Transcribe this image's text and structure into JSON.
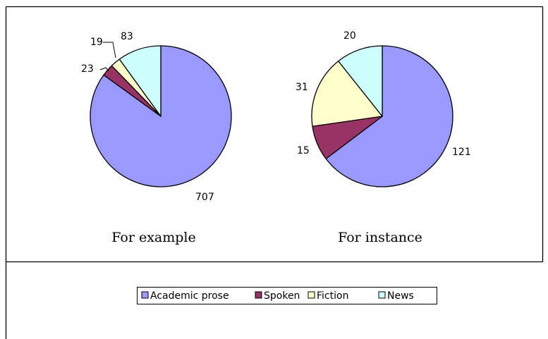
{
  "chart_data": [
    {
      "type": "pie",
      "title": "For example",
      "categories": [
        "Academic prose",
        "Spoken",
        "Fiction",
        "News"
      ],
      "values": [
        707,
        23,
        19,
        83
      ],
      "labels": [
        "707",
        "23",
        "19",
        "83"
      ]
    },
    {
      "type": "pie",
      "title": "For instance",
      "categories": [
        "Academic prose",
        "Spoken",
        "Fiction",
        "News"
      ],
      "values": [
        121,
        15,
        31,
        20
      ],
      "labels": [
        "121",
        "15",
        "31",
        "20"
      ]
    }
  ],
  "legend": {
    "placement": "bottom",
    "items": [
      {
        "name": "Academic prose",
        "color": "#9999ff"
      },
      {
        "name": "Spoken",
        "color": "#993366"
      },
      {
        "name": "Fiction",
        "color": "#ffffcc"
      },
      {
        "name": "News",
        "color": "#ccffff"
      }
    ]
  }
}
